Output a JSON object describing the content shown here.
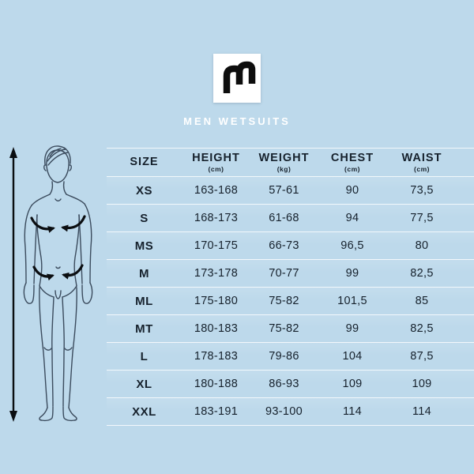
{
  "header": {
    "title": "MEN WETSUITS"
  },
  "icons": {
    "logo": "mystic-m-logo-icon",
    "height_arrow": "height-double-arrow-icon",
    "chest_arrows": "chest-measure-arrows-icon",
    "waist_arrows": "waist-measure-arrows-icon",
    "figure": "male-body-outline"
  },
  "colors": {
    "background": "#bdd9eb",
    "text": "#16212c",
    "title_text": "#ffffff",
    "body_line": "#3b4b5d",
    "arrow": "#0b0e11",
    "separator": "rgba(255,255,255,0.8)",
    "logo_bg": "#ffffff",
    "logo_glyph": "#0d0d0d"
  },
  "chart_data": {
    "type": "table",
    "title": "MEN WETSUITS",
    "columns": [
      {
        "label": "SIZE",
        "unit": ""
      },
      {
        "label": "HEIGHT",
        "unit": "(cm)"
      },
      {
        "label": "WEIGHT",
        "unit": "(kg)"
      },
      {
        "label": "CHEST",
        "unit": "(cm)"
      },
      {
        "label": "WAIST",
        "unit": "(cm)"
      }
    ],
    "rows": [
      [
        "XS",
        "163-168",
        "57-61",
        "90",
        "73,5"
      ],
      [
        "S",
        "168-173",
        "61-68",
        "94",
        "77,5"
      ],
      [
        "MS",
        "170-175",
        "66-73",
        "96,5",
        "80"
      ],
      [
        "M",
        "173-178",
        "70-77",
        "99",
        "82,5"
      ],
      [
        "ML",
        "175-180",
        "75-82",
        "101,5",
        "85"
      ],
      [
        "MT",
        "180-183",
        "75-82",
        "99",
        "82,5"
      ],
      [
        "L",
        "178-183",
        "79-86",
        "104",
        "87,5"
      ],
      [
        "XL",
        "180-188",
        "86-93",
        "109",
        "109"
      ],
      [
        "XXL",
        "183-191",
        "93-100",
        "114",
        "114"
      ]
    ]
  }
}
